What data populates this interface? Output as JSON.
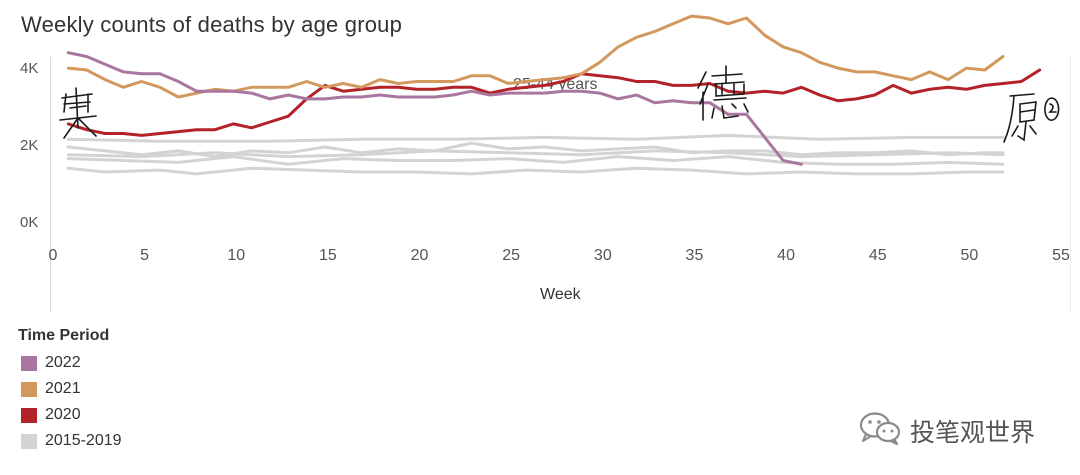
{
  "chart_data": {
    "type": "line",
    "title": "Weekly counts of deaths by age group",
    "panel_label": "25-44 years",
    "xlabel": "Week",
    "ylabel": "",
    "xlim": [
      0,
      55
    ],
    "ylim": [
      0,
      5000
    ],
    "x_ticks": [
      "0",
      "5",
      "10",
      "15",
      "20",
      "25",
      "30",
      "35",
      "40",
      "45",
      "50",
      "55"
    ],
    "y_ticks": [
      {
        "label": "4K",
        "value": 4000
      },
      {
        "label": "2K",
        "value": 2000
      },
      {
        "label": "0K",
        "value": 0
      }
    ],
    "legend_title": "Time Period",
    "series": [
      {
        "name": "2022",
        "color": "#a8769e",
        "legend": true,
        "x": [
          1,
          2,
          3,
          4,
          5,
          6,
          7,
          8,
          9,
          10,
          11,
          12,
          13,
          14,
          15,
          16,
          17,
          18,
          19,
          20,
          21,
          22,
          23,
          24,
          25,
          26,
          27,
          28,
          29,
          30,
          31,
          32,
          33,
          34,
          35,
          36,
          37,
          38,
          39,
          40,
          41
        ],
        "y": [
          4450,
          4350,
          4150,
          3950,
          3900,
          3900,
          3700,
          3450,
          3450,
          3450,
          3400,
          3250,
          3350,
          3250,
          3250,
          3300,
          3300,
          3350,
          3300,
          3300,
          3300,
          3350,
          3450,
          3350,
          3400,
          3400,
          3400,
          3450,
          3450,
          3400,
          3250,
          3350,
          3150,
          3200,
          3150,
          3150,
          2850,
          2850,
          2250,
          1650,
          1550
        ]
      },
      {
        "name": "2021",
        "color": "#d3985d",
        "legend": true,
        "x": [
          1,
          2,
          3,
          4,
          5,
          6,
          7,
          8,
          9,
          10,
          11,
          12,
          13,
          14,
          15,
          16,
          17,
          18,
          19,
          20,
          21,
          22,
          23,
          24,
          25,
          26,
          27,
          28,
          29,
          30,
          31,
          32,
          33,
          34,
          35,
          36,
          37,
          38,
          39,
          40,
          41,
          42,
          43,
          44,
          45,
          46,
          47,
          48,
          49,
          50,
          51,
          52
        ],
        "y": [
          4050,
          4000,
          3750,
          3550,
          3700,
          3550,
          3300,
          3400,
          3500,
          3450,
          3550,
          3550,
          3550,
          3700,
          3550,
          3650,
          3550,
          3750,
          3650,
          3700,
          3700,
          3700,
          3850,
          3850,
          3650,
          3700,
          3750,
          3800,
          3900,
          4200,
          4600,
          4850,
          5000,
          5200,
          5400,
          5350,
          5200,
          5350,
          4900,
          4600,
          4450,
          4200,
          4050,
          3950,
          3950,
          3850,
          3750,
          3950,
          3750,
          4050,
          4000,
          4350
        ]
      },
      {
        "name": "2020",
        "color": "#b32228",
        "legend": true,
        "x": [
          1,
          2,
          3,
          4,
          5,
          6,
          7,
          8,
          9,
          10,
          11,
          12,
          13,
          14,
          15,
          16,
          17,
          18,
          19,
          20,
          21,
          22,
          23,
          24,
          25,
          26,
          27,
          28,
          29,
          30,
          31,
          32,
          33,
          34,
          35,
          36,
          37,
          38,
          39,
          40,
          41,
          42,
          43,
          44,
          45,
          46,
          47,
          48,
          49,
          50,
          51,
          52,
          53,
          54
        ],
        "y": [
          2600,
          2450,
          2350,
          2350,
          2300,
          2350,
          2400,
          2450,
          2450,
          2600,
          2500,
          2650,
          2800,
          3250,
          3600,
          3450,
          3500,
          3550,
          3550,
          3500,
          3500,
          3550,
          3550,
          3400,
          3500,
          3550,
          3600,
          3700,
          3900,
          3850,
          3800,
          3700,
          3700,
          3600,
          3600,
          3650,
          3450,
          3400,
          3450,
          3400,
          3550,
          3350,
          3200,
          3250,
          3350,
          3600,
          3400,
          3500,
          3550,
          3500,
          3600,
          3650,
          3700,
          4000
        ]
      },
      {
        "name": "2015-2019",
        "color": "#d3d3d3",
        "legend": true,
        "x": [
          1,
          6,
          12,
          17,
          22,
          27,
          32,
          37,
          42,
          47,
          52
        ],
        "y": [
          2200,
          2150,
          2150,
          2200,
          2200,
          2250,
          2200,
          2300,
          2200,
          2250,
          2250
        ]
      },
      {
        "name": "2015-2019",
        "color": "#d3d3d3",
        "legend": false,
        "x": [
          1,
          3,
          5,
          7,
          9,
          11,
          13,
          15,
          17,
          19,
          21,
          23,
          25,
          27,
          29,
          31,
          33,
          35,
          37,
          39,
          41,
          43,
          45,
          47,
          49,
          51,
          52
        ],
        "y": [
          2000,
          1900,
          1800,
          1900,
          1750,
          1900,
          1850,
          2000,
          1850,
          1950,
          1900,
          2100,
          1950,
          2000,
          1900,
          1950,
          2000,
          1850,
          1900,
          1900,
          1800,
          1850,
          1850,
          1900,
          1800,
          1850,
          1850
        ]
      },
      {
        "name": "2015-2019",
        "color": "#d3d3d3",
        "legend": false,
        "x": [
          1,
          4,
          7,
          10,
          13,
          16,
          19,
          22,
          25,
          28,
          31,
          34,
          37,
          40,
          43,
          46,
          49,
          52
        ],
        "y": [
          1700,
          1650,
          1600,
          1750,
          1550,
          1700,
          1650,
          1650,
          1700,
          1600,
          1750,
          1650,
          1750,
          1600,
          1550,
          1550,
          1600,
          1550
        ]
      },
      {
        "name": "2015-2019",
        "color": "#d3d3d3",
        "legend": false,
        "x": [
          1,
          3,
          6,
          8,
          11,
          14,
          17,
          20,
          23,
          26,
          29,
          32,
          35,
          38,
          41,
          44,
          47,
          50,
          52
        ],
        "y": [
          1450,
          1350,
          1400,
          1300,
          1450,
          1400,
          1350,
          1350,
          1300,
          1400,
          1350,
          1450,
          1400,
          1300,
          1350,
          1300,
          1300,
          1350,
          1350
        ]
      },
      {
        "name": "2015-2019",
        "color": "#d3d3d3",
        "legend": false,
        "x": [
          1,
          5,
          9,
          13,
          17,
          21,
          25,
          29,
          33,
          37,
          41,
          45,
          49,
          52
        ],
        "y": [
          1800,
          1750,
          1850,
          1750,
          1800,
          1900,
          1850,
          1800,
          1900,
          1850,
          1750,
          1800,
          1850,
          1800
        ]
      }
    ]
  },
  "annotations": {
    "watermark_text": "投笔观世界"
  }
}
